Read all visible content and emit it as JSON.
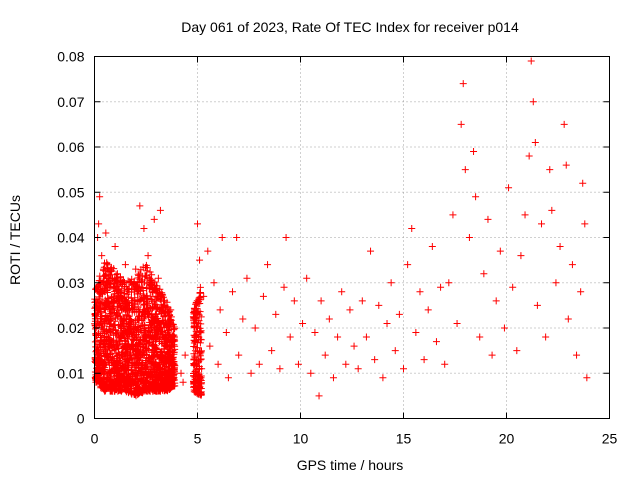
{
  "chart_data": {
    "type": "scatter",
    "title": "Day 061 of 2023, Rate Of TEC Index for receiver p014",
    "xlabel": "GPS time / hours",
    "ylabel": "ROTI / TECUs",
    "xlim": [
      0,
      25
    ],
    "ylim": [
      0,
      0.08
    ],
    "x_ticks": [
      0,
      5,
      10,
      15,
      20,
      25
    ],
    "x_tick_labels": [
      "0",
      "5",
      "10",
      "15",
      "20",
      "25"
    ],
    "y_ticks": [
      0,
      0.01,
      0.02,
      0.03,
      0.04,
      0.05,
      0.06,
      0.07,
      0.08
    ],
    "y_tick_labels": [
      "0",
      "0.01",
      "0.02",
      "0.03",
      "0.04",
      "0.05",
      "0.06",
      "0.07",
      "0.08"
    ],
    "grid": true,
    "marker": "+",
    "series": [
      {
        "name": "ROTI",
        "color": "#ff0000",
        "points": [
          [
            0.1,
            0.015
          ],
          [
            0.15,
            0.04
          ],
          [
            0.2,
            0.043
          ],
          [
            0.3,
            0.022
          ],
          [
            0.25,
            0.049
          ],
          [
            0.35,
            0.036
          ],
          [
            0.4,
            0.012
          ],
          [
            0.5,
            0.028
          ],
          [
            0.55,
            0.041
          ],
          [
            0.6,
            0.018
          ],
          [
            0.7,
            0.031
          ],
          [
            0.8,
            0.009
          ],
          [
            0.9,
            0.024
          ],
          [
            1.0,
            0.038
          ],
          [
            1.1,
            0.016
          ],
          [
            1.2,
            0.027
          ],
          [
            1.3,
            0.011
          ],
          [
            1.4,
            0.021
          ],
          [
            1.5,
            0.034
          ],
          [
            1.6,
            0.014
          ],
          [
            1.7,
            0.025
          ],
          [
            1.8,
            0.008
          ],
          [
            1.9,
            0.019
          ],
          [
            2.0,
            0.033
          ],
          [
            2.1,
            0.012
          ],
          [
            2.2,
            0.047
          ],
          [
            2.3,
            0.022
          ],
          [
            2.4,
            0.042
          ],
          [
            2.5,
            0.015
          ],
          [
            2.6,
            0.036
          ],
          [
            2.7,
            0.01
          ],
          [
            2.8,
            0.028
          ],
          [
            2.9,
            0.044
          ],
          [
            3.0,
            0.02
          ],
          [
            3.1,
            0.031
          ],
          [
            3.2,
            0.046
          ],
          [
            3.3,
            0.013
          ],
          [
            3.4,
            0.026
          ],
          [
            3.5,
            0.018
          ],
          [
            3.6,
            0.009
          ],
          [
            3.7,
            0.024
          ],
          [
            3.8,
            0.015
          ],
          [
            4.2,
            0.01
          ],
          [
            4.3,
            0.008
          ],
          [
            4.4,
            0.014
          ],
          [
            4.9,
            0.022
          ],
          [
            5.0,
            0.043
          ],
          [
            5.1,
            0.035
          ],
          [
            5.2,
            0.011
          ],
          [
            5.3,
            0.027
          ],
          [
            5.5,
            0.037
          ],
          [
            5.6,
            0.016
          ],
          [
            5.8,
            0.03
          ],
          [
            6.0,
            0.012
          ],
          [
            6.1,
            0.024
          ],
          [
            6.2,
            0.04
          ],
          [
            6.4,
            0.019
          ],
          [
            6.5,
            0.009
          ],
          [
            6.7,
            0.028
          ],
          [
            6.9,
            0.04
          ],
          [
            7.0,
            0.014
          ],
          [
            7.2,
            0.022
          ],
          [
            7.4,
            0.031
          ],
          [
            7.6,
            0.01
          ],
          [
            7.8,
            0.02
          ],
          [
            8.0,
            0.012
          ],
          [
            8.2,
            0.027
          ],
          [
            8.4,
            0.034
          ],
          [
            8.6,
            0.015
          ],
          [
            8.8,
            0.023
          ],
          [
            9.0,
            0.011
          ],
          [
            9.2,
            0.029
          ],
          [
            9.3,
            0.04
          ],
          [
            9.5,
            0.018
          ],
          [
            9.7,
            0.026
          ],
          [
            9.9,
            0.012
          ],
          [
            10.1,
            0.021
          ],
          [
            10.3,
            0.031
          ],
          [
            10.5,
            0.01
          ],
          [
            10.7,
            0.019
          ],
          [
            10.9,
            0.005
          ],
          [
            11.0,
            0.026
          ],
          [
            11.2,
            0.014
          ],
          [
            11.4,
            0.022
          ],
          [
            11.6,
            0.009
          ],
          [
            11.8,
            0.018
          ],
          [
            12.0,
            0.028
          ],
          [
            12.2,
            0.012
          ],
          [
            12.4,
            0.024
          ],
          [
            12.6,
            0.016
          ],
          [
            12.8,
            0.011
          ],
          [
            13.0,
            0.026
          ],
          [
            13.2,
            0.018
          ],
          [
            13.4,
            0.037
          ],
          [
            13.6,
            0.013
          ],
          [
            13.8,
            0.025
          ],
          [
            14.0,
            0.009
          ],
          [
            14.2,
            0.021
          ],
          [
            14.4,
            0.03
          ],
          [
            14.6,
            0.015
          ],
          [
            14.8,
            0.023
          ],
          [
            15.0,
            0.011
          ],
          [
            15.2,
            0.034
          ],
          [
            15.4,
            0.042
          ],
          [
            15.6,
            0.019
          ],
          [
            15.8,
            0.028
          ],
          [
            16.0,
            0.013
          ],
          [
            16.2,
            0.024
          ],
          [
            16.4,
            0.038
          ],
          [
            16.6,
            0.017
          ],
          [
            16.8,
            0.029
          ],
          [
            17.0,
            0.012
          ],
          [
            17.2,
            0.03
          ],
          [
            17.4,
            0.045
          ],
          [
            17.6,
            0.021
          ],
          [
            17.8,
            0.065
          ],
          [
            17.9,
            0.074
          ],
          [
            18.0,
            0.055
          ],
          [
            18.2,
            0.04
          ],
          [
            18.4,
            0.059
          ],
          [
            18.5,
            0.049
          ],
          [
            18.7,
            0.018
          ],
          [
            18.9,
            0.032
          ],
          [
            19.1,
            0.044
          ],
          [
            19.3,
            0.014
          ],
          [
            19.5,
            0.026
          ],
          [
            19.7,
            0.037
          ],
          [
            19.9,
            0.02
          ],
          [
            20.1,
            0.051
          ],
          [
            20.3,
            0.029
          ],
          [
            20.5,
            0.015
          ],
          [
            20.7,
            0.036
          ],
          [
            20.9,
            0.045
          ],
          [
            21.1,
            0.058
          ],
          [
            21.2,
            0.079
          ],
          [
            21.3,
            0.07
          ],
          [
            21.4,
            0.061
          ],
          [
            21.5,
            0.025
          ],
          [
            21.7,
            0.043
          ],
          [
            21.9,
            0.018
          ],
          [
            22.1,
            0.055
          ],
          [
            22.2,
            0.046
          ],
          [
            22.4,
            0.03
          ],
          [
            22.6,
            0.038
          ],
          [
            22.8,
            0.065
          ],
          [
            22.9,
            0.056
          ],
          [
            23.0,
            0.022
          ],
          [
            23.2,
            0.034
          ],
          [
            23.4,
            0.014
          ],
          [
            23.6,
            0.028
          ],
          [
            23.7,
            0.052
          ],
          [
            23.8,
            0.043
          ],
          [
            23.9,
            0.009
          ]
        ],
        "envelope": [
          [
            0.0,
            0.008,
            0.028
          ],
          [
            0.5,
            0.006,
            0.035
          ],
          [
            1.0,
            0.006,
            0.033
          ],
          [
            1.5,
            0.006,
            0.03
          ],
          [
            2.0,
            0.005,
            0.032
          ],
          [
            2.5,
            0.006,
            0.034
          ],
          [
            3.0,
            0.006,
            0.03
          ],
          [
            3.5,
            0.006,
            0.026
          ],
          [
            3.9,
            0.007,
            0.02
          ],
          [
            4.8,
            0.006,
            0.024
          ],
          [
            5.2,
            0.005,
            0.03
          ],
          [
            6.0,
            0.005,
            0.027
          ],
          [
            7.0,
            0.004,
            0.026
          ],
          [
            8.0,
            0.005,
            0.025
          ],
          [
            9.0,
            0.005,
            0.025
          ],
          [
            10.0,
            0.005,
            0.024
          ],
          [
            11.0,
            0.004,
            0.024
          ],
          [
            12.0,
            0.005,
            0.023
          ],
          [
            13.0,
            0.005,
            0.025
          ],
          [
            14.0,
            0.005,
            0.026
          ],
          [
            15.0,
            0.005,
            0.028
          ],
          [
            16.0,
            0.006,
            0.03
          ],
          [
            17.0,
            0.007,
            0.032
          ],
          [
            18.0,
            0.007,
            0.034
          ],
          [
            19.0,
            0.008,
            0.033
          ],
          [
            20.0,
            0.007,
            0.034
          ],
          [
            21.0,
            0.007,
            0.036
          ],
          [
            22.0,
            0.006,
            0.032
          ],
          [
            23.0,
            0.007,
            0.032
          ],
          [
            23.9,
            0.008,
            0.028
          ]
        ]
      }
    ]
  }
}
